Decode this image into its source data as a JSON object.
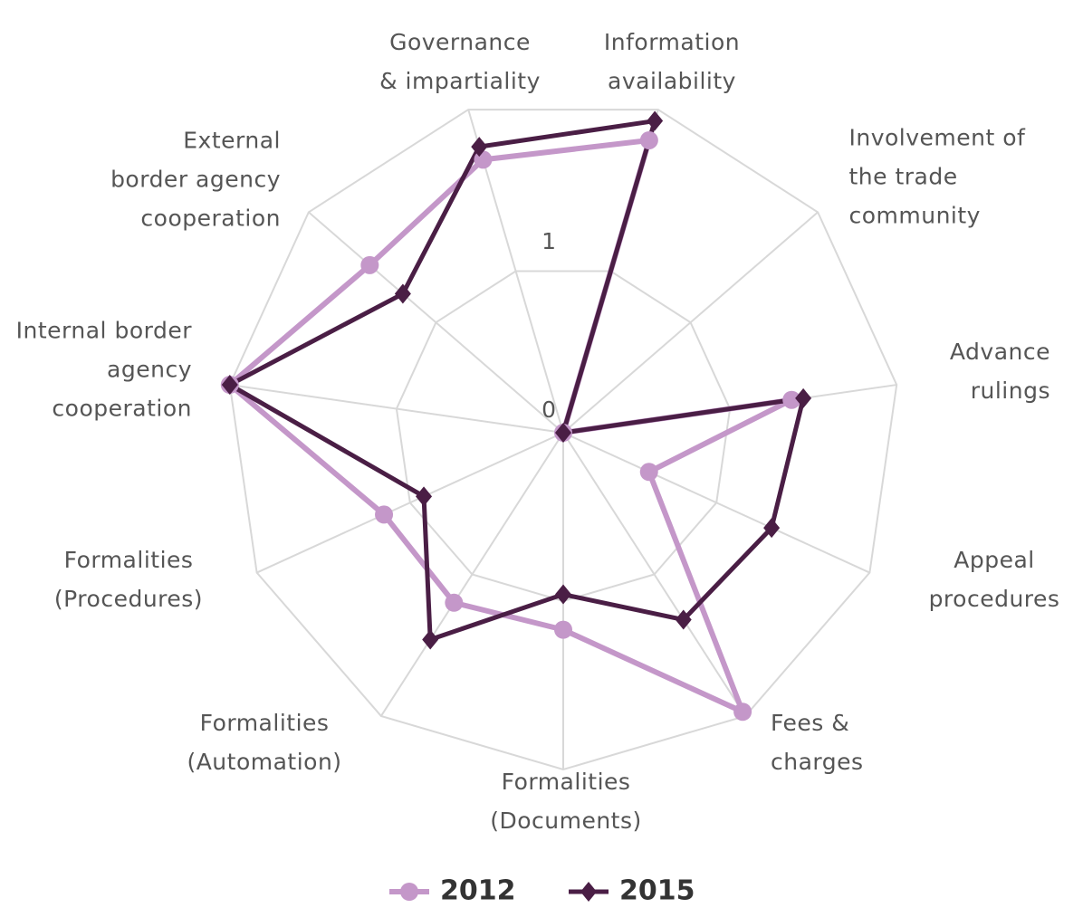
{
  "chart_data": {
    "type": "radar",
    "categories": [
      "Governance & impartiality",
      "Information availability",
      "Involvement of the trade community",
      "Advance rulings",
      "Appeal procedures",
      "Fees & charges",
      "Formalities (Documents)",
      "Formalities (Automation)",
      "Formalities (Procedures)",
      "Internal border agency cooperation",
      "External border agency cooperation"
    ],
    "series": [
      {
        "name": "2012",
        "color": "#c497c9",
        "values": [
          1.69,
          1.81,
          0,
          1.37,
          0.56,
          1.97,
          1.17,
          1.2,
          1.17,
          2,
          1.52
        ]
      },
      {
        "name": "2015",
        "color": "#4a1e45",
        "values": [
          1.77,
          1.93,
          0,
          1.44,
          1.36,
          1.32,
          0.96,
          1.46,
          0.91,
          2,
          1.26
        ]
      }
    ],
    "ylim": [
      0,
      2
    ],
    "yticks": [
      0,
      1
    ],
    "grid": true,
    "legend": "bottom"
  }
}
